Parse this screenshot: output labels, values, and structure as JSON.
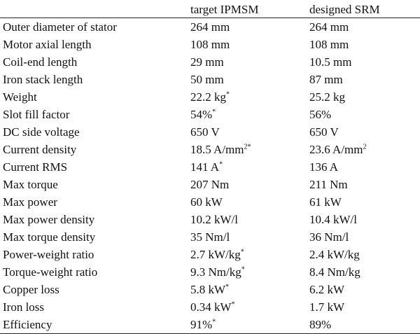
{
  "table": {
    "header": {
      "param": "",
      "ipmsm": "target IPMSM",
      "srm": "designed SRM"
    },
    "rows": [
      {
        "param": "Outer diameter of stator",
        "ipmsm": "264 mm",
        "ipmsm_note": "",
        "srm": "264 mm",
        "srm_sup": ""
      },
      {
        "param": "Motor axial length",
        "ipmsm": "108 mm",
        "ipmsm_note": "",
        "srm": "108 mm",
        "srm_sup": ""
      },
      {
        "param": "Coil-end length",
        "ipmsm": "29 mm",
        "ipmsm_note": "",
        "srm": "10.5 mm",
        "srm_sup": ""
      },
      {
        "param": "Iron stack length",
        "ipmsm": "50 mm",
        "ipmsm_note": "",
        "srm": "87 mm",
        "srm_sup": ""
      },
      {
        "param": "Weight",
        "ipmsm": "22.2 kg",
        "ipmsm_note": "*",
        "srm": "25.2 kg",
        "srm_sup": ""
      },
      {
        "param": "Slot fill factor",
        "ipmsm": "54%",
        "ipmsm_note": "*",
        "srm": "56%",
        "srm_sup": ""
      },
      {
        "param": "DC side voltage",
        "ipmsm": "650 V",
        "ipmsm_note": "",
        "srm": "650 V",
        "srm_sup": ""
      },
      {
        "param": "Current density",
        "ipmsm": "18.5 A/mm",
        "ipmsm_note": "2*",
        "srm": "23.6 A/mm",
        "srm_sup": "2"
      },
      {
        "param": "Current RMS",
        "ipmsm": "141 A",
        "ipmsm_note": "*",
        "srm": "136 A",
        "srm_sup": ""
      },
      {
        "param": "Max torque",
        "ipmsm": "207 Nm",
        "ipmsm_note": "",
        "srm": "211 Nm",
        "srm_sup": ""
      },
      {
        "param": "Max power",
        "ipmsm": "60 kW",
        "ipmsm_note": "",
        "srm": "61 kW",
        "srm_sup": ""
      },
      {
        "param": "Max power density",
        "ipmsm": "10.2 kW/l",
        "ipmsm_note": "",
        "srm": "10.4 kW/l",
        "srm_sup": ""
      },
      {
        "param": "Max torque density",
        "ipmsm": "35 Nm/l",
        "ipmsm_note": "",
        "srm": "36 Nm/l",
        "srm_sup": ""
      },
      {
        "param": "Power-weight ratio",
        "ipmsm": "2.7 kW/kg",
        "ipmsm_note": "*",
        "srm": "2.4 kW/kg",
        "srm_sup": ""
      },
      {
        "param": "Torque-weight ratio",
        "ipmsm": "9.3 Nm/kg",
        "ipmsm_note": "*",
        "srm": "8.4 Nm/kg",
        "srm_sup": ""
      },
      {
        "param": "Copper loss",
        "ipmsm": "5.8 kW",
        "ipmsm_note": "*",
        "srm": "6.2 kW",
        "srm_sup": ""
      },
      {
        "param": "Iron loss",
        "ipmsm": "0.34 kW",
        "ipmsm_note": "*",
        "srm": "1.7 kW",
        "srm_sup": ""
      },
      {
        "param": "Efficiency",
        "ipmsm": "91%",
        "ipmsm_note": "*",
        "srm": "89%",
        "srm_sup": ""
      }
    ]
  }
}
